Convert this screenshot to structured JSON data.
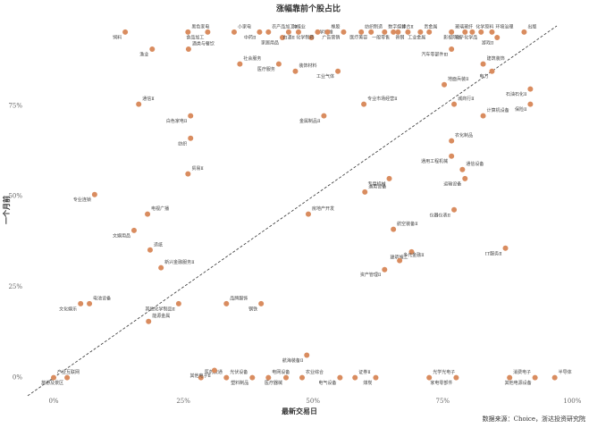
{
  "chart_data": {
    "type": "scatter",
    "title": "涨幅靠前个股占比",
    "x_label": "最新交易日",
    "y_label": "一个月前",
    "source": "数据来源：Choice，浙达投资研究院",
    "color": "#d98c5f",
    "xlim": [
      -5,
      102
    ],
    "ylim": [
      -6,
      97
    ],
    "xticks": [
      {
        "value": 0,
        "label": "0%"
      },
      {
        "value": 25,
        "label": "25%"
      },
      {
        "value": 50,
        "label": "50%"
      },
      {
        "value": 75,
        "label": "75%"
      },
      {
        "value": 100,
        "label": "100%"
      }
    ],
    "yticks": [
      {
        "value": 0,
        "label": "0%"
      },
      {
        "value": 25,
        "label": "25%"
      },
      {
        "value": 50,
        "label": "50%"
      },
      {
        "value": 75,
        "label": "75%"
      }
    ],
    "point_labels": [
      "饲料",
      "黑色家电",
      "食品加工",
      "小家电",
      "中药Ⅱ",
      "农产品加工Ⅱ",
      "家居用品",
      "种植业",
      "白酒Ⅱ",
      "化学纤维",
      "化学制药",
      "橡胶",
      "广告营销",
      "纺织制造",
      "医疗美容",
      "数字媒体",
      "一般零售",
      "综合Ⅱ",
      "普钢",
      "贵金属",
      "工业金属",
      "玻璃玻纤",
      "影视院线",
      "化学原料",
      "电子化学品",
      "环境治理",
      "游戏Ⅱ",
      "出版",
      "渔业",
      "酒类与餐饮",
      "汽车零部件Ⅲ",
      "社会服务",
      "医疗服务",
      "装饰材料",
      "工业气体",
      "建筑装饰",
      "电力",
      "地面兵装Ⅱ",
      "石油石化Ⅱ",
      "通信Ⅱ",
      "白色家电Ⅱ",
      "专业市场经营Ⅱ",
      "金属制品Ⅱ",
      "城商行Ⅱ",
      "保险Ⅱ",
      "计算机设备",
      "纺织",
      "农化制品",
      "通用工程机械",
      "通信设备",
      "运输设备",
      "贸易Ⅱ",
      "专用机械",
      "通用设备",
      "专业连锁",
      "房地产开发",
      "仪器仪表Ⅱ",
      "电视广播",
      "文娱用品",
      "航空装备Ⅱ",
      "IT服务Ⅱ",
      "造纸",
      "建筑施工",
      "多元金融Ⅱ",
      "资产管理Ⅱ",
      "新兴金融服务Ⅱ",
      "文化娱乐",
      "电池设备",
      "其他化学制品Ⅱ",
      "品牌服饰",
      "钢铁",
      "能源金属",
      "航海装备Ⅱ",
      "产业互联网",
      "旅游及景区",
      "医药流通",
      "其他电子Ⅱ",
      "光伏设备",
      "塑料制品",
      "电网设备",
      "医疗器械",
      "农业综合",
      "电气设备",
      "证券Ⅱ",
      "煤炭",
      "光学光电子",
      "家电零部件",
      "消费电子",
      "其他电源设备",
      "半导体"
    ],
    "x": [
      13.8,
      25.9,
      29.7,
      34.8,
      39.7,
      41.4,
      44.1,
      45.3,
      47.2,
      49.7,
      50.9,
      52.8,
      55.9,
      59.3,
      61.2,
      63.8,
      65.5,
      66.4,
      68.3,
      70.7,
      72.4,
      76.7,
      79.3,
      80.7,
      82.4,
      84.5,
      85.5,
      90.7,
      19.0,
      26.0,
      76.7,
      35.9,
      43.4,
      46.6,
      54.8,
      82.8,
      84.5,
      75.3,
      91.9,
      16.4,
      26.4,
      59.8,
      52.1,
      77.2,
      91.9,
      82.8,
      26.4,
      76.7,
      76.7,
      78.8,
      79.3,
      25.9,
      64.7,
      60.0,
      7.9,
      49.1,
      77.2,
      18.1,
      15.5,
      65.5,
      87.1,
      18.6,
      69.0,
      66.7,
      63.8,
      20.7,
      5.2,
      6.9,
      24.1,
      33.3,
      40.0,
      18.3,
      48.8,
      0.0,
      2.6,
      28.4,
      31.0,
      33.3,
      38.3,
      41.4,
      44.8,
      47.9,
      55.2,
      58.1,
      62.1,
      72.4,
      77.6,
      87.9,
      92.8,
      96.6
    ],
    "values": [
      95.3,
      95.3,
      95.3,
      95.3,
      95.3,
      95.3,
      93.8,
      95.3,
      95.3,
      93.8,
      95.3,
      95.3,
      95.3,
      95.3,
      95.3,
      95.3,
      95.3,
      95.3,
      95.3,
      95.3,
      95.3,
      95.3,
      95.3,
      95.3,
      95.3,
      95.3,
      93.8,
      95.3,
      90.6,
      90.6,
      90.6,
      86.5,
      86.5,
      84.5,
      84.5,
      86.5,
      84.5,
      80.8,
      79.6,
      75.4,
      72.2,
      75.4,
      72.2,
      75.4,
      75.4,
      72.2,
      66.0,
      65.3,
      61.1,
      57.4,
      54.9,
      56.2,
      54.9,
      51.2,
      50.5,
      45.1,
      46.3,
      45.1,
      40.6,
      40.9,
      35.7,
      35.2,
      34.7,
      32.3,
      29.8,
      30.3,
      20.4,
      20.4,
      20.4,
      20.4,
      20.4,
      15.5,
      6.2,
      0.0,
      0.0,
      0.0,
      2.0,
      0.0,
      0.0,
      0.0,
      0.0,
      0.0,
      0.0,
      0.0,
      0.0,
      0.0,
      0.0,
      0.0,
      0.0,
      0.0
    ]
  }
}
